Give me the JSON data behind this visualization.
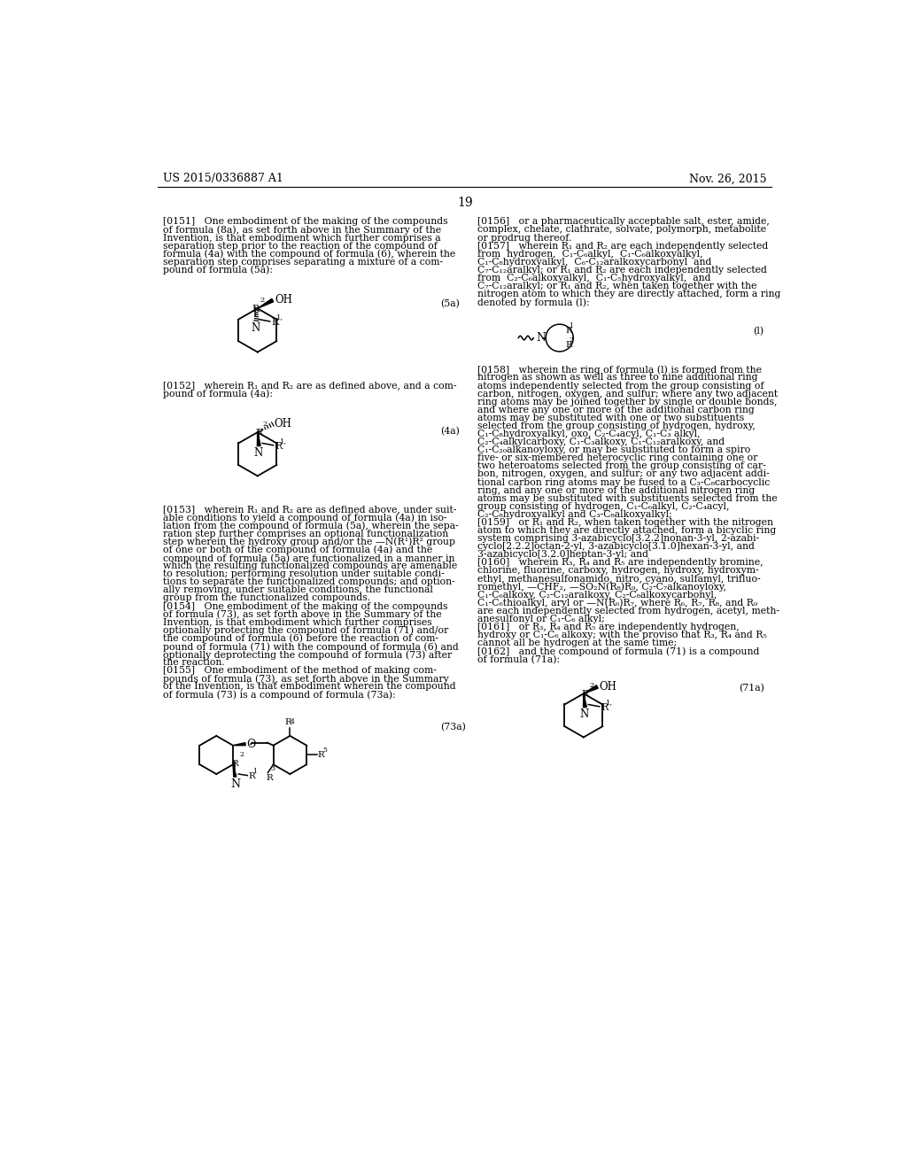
{
  "background_color": "#ffffff",
  "header_left": "US 2015/0336887 A1",
  "header_right": "Nov. 26, 2015",
  "page_number": "19"
}
